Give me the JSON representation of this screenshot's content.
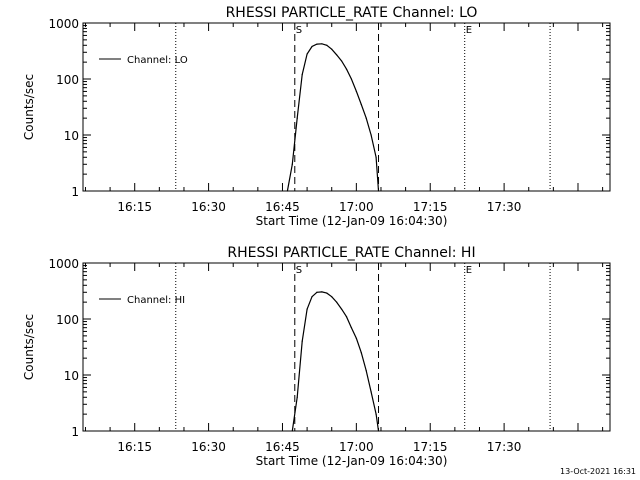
{
  "footer": {
    "timestamp": "13-Oct-2021 16:31"
  },
  "chart_data": [
    {
      "type": "line",
      "title": "RHESSI PARTICLE_RATE Channel: LO",
      "xlabel": "Start Time (12-Jan-09 16:04:30)",
      "ylabel": "Counts/sec",
      "x_unit": "minutes after 16:04:30",
      "xlim": [
        0,
        107
      ],
      "ylim": [
        1,
        1000
      ],
      "y_scale": "log",
      "x_ticks": [
        "16:15",
        "16:30",
        "16:45",
        "17:00",
        "17:15",
        "17:30"
      ],
      "y_ticks": [
        "1",
        "10",
        "100",
        "1000"
      ],
      "legend": {
        "placement": "top-left",
        "entries": [
          "Channel: LO"
        ]
      },
      "markers": {
        "start_label": "S",
        "end_label": "E",
        "dashed_times": [
          "16:47:30",
          "17:04:30"
        ],
        "dotted_times": [
          "16:23:20",
          "17:22:00",
          "17:39:20"
        ]
      },
      "series": [
        {
          "name": "Channel: LO",
          "x": [
            "16:46:00",
            "16:47:00",
            "16:48:00",
            "16:49:00",
            "16:50:00",
            "16:51:00",
            "16:52:00",
            "16:53:00",
            "16:54:00",
            "16:55:00",
            "16:56:00",
            "16:57:00",
            "16:58:00",
            "16:59:00",
            "17:00:00",
            "17:01:00",
            "17:02:00",
            "17:03:00",
            "17:04:00",
            "17:04:30"
          ],
          "y": [
            1,
            3,
            20,
            120,
            280,
            380,
            420,
            425,
            400,
            340,
            270,
            210,
            150,
            100,
            60,
            35,
            20,
            10,
            4,
            1
          ]
        }
      ]
    },
    {
      "type": "line",
      "title": "RHESSI PARTICLE_RATE Channel: HI",
      "xlabel": "Start Time (12-Jan-09 16:04:30)",
      "ylabel": "Counts/sec",
      "x_unit": "minutes after 16:04:30",
      "xlim": [
        0,
        107
      ],
      "ylim": [
        1,
        1000
      ],
      "y_scale": "log",
      "x_ticks": [
        "16:15",
        "16:30",
        "16:45",
        "17:00",
        "17:15",
        "17:30"
      ],
      "y_ticks": [
        "1",
        "10",
        "100",
        "1000"
      ],
      "legend": {
        "placement": "top-left",
        "entries": [
          "Channel: HI"
        ]
      },
      "markers": {
        "start_label": "S",
        "end_label": "E",
        "dashed_times": [
          "16:47:30",
          "17:04:30"
        ],
        "dotted_times": [
          "16:23:20",
          "17:22:00",
          "17:39:20"
        ]
      },
      "series": [
        {
          "name": "Channel: HI",
          "x": [
            "16:47:00",
            "16:48:00",
            "16:49:00",
            "16:50:00",
            "16:51:00",
            "16:52:00",
            "16:53:00",
            "16:54:00",
            "16:55:00",
            "16:56:00",
            "16:57:00",
            "16:58:00",
            "16:59:00",
            "17:00:00",
            "17:01:00",
            "17:02:00",
            "17:03:00",
            "17:04:00",
            "17:04:30"
          ],
          "y": [
            1,
            4,
            40,
            150,
            250,
            300,
            305,
            290,
            250,
            200,
            150,
            110,
            70,
            45,
            25,
            12,
            5,
            2,
            1
          ]
        }
      ]
    }
  ]
}
